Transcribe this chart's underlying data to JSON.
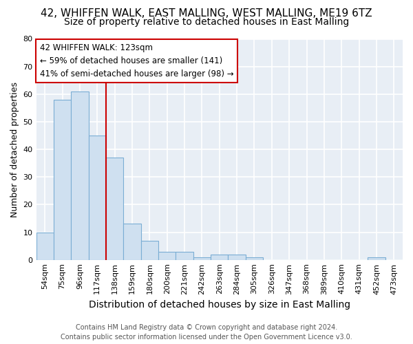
{
  "title_line1": "42, WHIFFEN WALK, EAST MALLING, WEST MALLING, ME19 6TZ",
  "title_line2": "Size of property relative to detached houses in East Malling",
  "xlabel": "Distribution of detached houses by size in East Malling",
  "ylabel": "Number of detached properties",
  "categories": [
    "54sqm",
    "75sqm",
    "96sqm",
    "117sqm",
    "138sqm",
    "159sqm",
    "180sqm",
    "200sqm",
    "221sqm",
    "242sqm",
    "263sqm",
    "284sqm",
    "305sqm",
    "326sqm",
    "347sqm",
    "368sqm",
    "389sqm",
    "410sqm",
    "431sqm",
    "452sqm",
    "473sqm"
  ],
  "values": [
    10,
    58,
    61,
    45,
    37,
    13,
    7,
    3,
    3,
    1,
    2,
    2,
    1,
    0,
    0,
    0,
    0,
    0,
    0,
    1,
    0
  ],
  "bar_color": "#cfe0f0",
  "bar_edge_color": "#7aadd4",
  "vline_color": "#cc0000",
  "vline_x_index": 3,
  "annotation_text": "42 WHIFFEN WALK: 123sqm\n← 59% of detached houses are smaller (141)\n41% of semi-detached houses are larger (98) →",
  "annotation_box_facecolor": "#ffffff",
  "annotation_box_edgecolor": "#cc0000",
  "ylim": [
    0,
    80
  ],
  "yticks": [
    0,
    10,
    20,
    30,
    40,
    50,
    60,
    70,
    80
  ],
  "fig_bg_color": "#ffffff",
  "axes_bg_color": "#e8eef5",
  "grid_color": "#ffffff",
  "footer_line1": "Contains HM Land Registry data © Crown copyright and database right 2024.",
  "footer_line2": "Contains public sector information licensed under the Open Government Licence v3.0.",
  "title_fontsize": 11,
  "subtitle_fontsize": 10,
  "ylabel_fontsize": 9,
  "xlabel_fontsize": 10,
  "tick_fontsize": 8,
  "annotation_fontsize": 8.5,
  "footer_fontsize": 7
}
